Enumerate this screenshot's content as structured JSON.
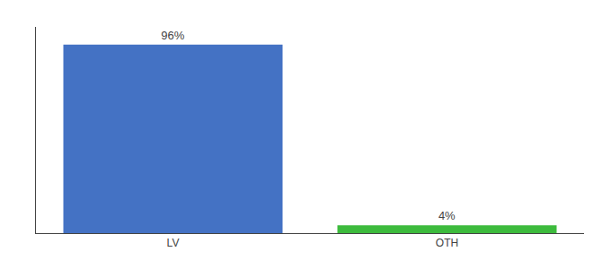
{
  "chart_data": {
    "type": "bar",
    "categories": [
      "LV",
      "OTH"
    ],
    "values": [
      96,
      4
    ],
    "value_labels": [
      "96%",
      "4%"
    ],
    "colors": [
      "#4472c4",
      "#3dbb3d"
    ],
    "ylim": [
      0,
      105
    ],
    "yticks": [],
    "data_labels": true,
    "tick_labels": "x",
    "grid": false
  }
}
